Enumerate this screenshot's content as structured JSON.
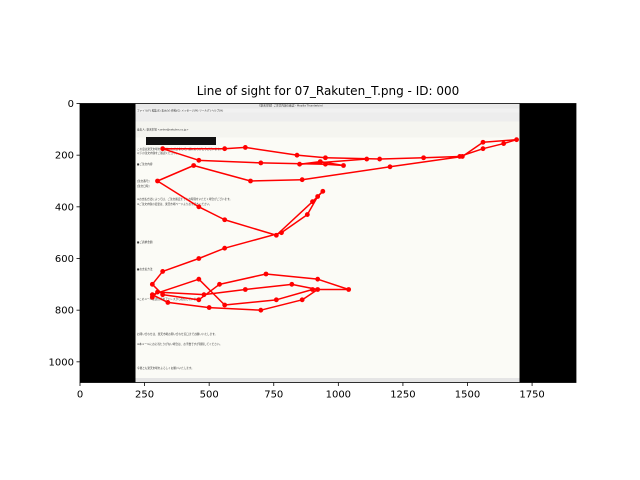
{
  "chart_data": {
    "type": "scatter",
    "title": "Line of sight for 07_Rakuten_T.png - ID: 000",
    "xlabel": "",
    "ylabel": "",
    "xlim": [
      0,
      1920
    ],
    "ylim": [
      1080,
      0
    ],
    "x_ticks": [
      0,
      250,
      500,
      750,
      1000,
      1250,
      1500,
      1750
    ],
    "y_ticks": [
      0,
      200,
      400,
      600,
      800,
      1000
    ],
    "grid": false,
    "legend": "none",
    "background_image": {
      "kind": "email client screenshot",
      "extent_x": [
        215,
        1700
      ],
      "extent_y": [
        0,
        1080
      ],
      "text_lines": [
        "【楽天市場】ご注文内容の確認 - Mozilla Thunderbird",
        "ファイル(F)  編集(E)  表示(V)  移動(G)  メッセージ(M)  ツール(T)  ヘルプ(H)",
        "差出人: 楽天市場 <order@rakuten.co.jp>",
        "この度は楽天市場をご利用いただきまして、誠にありがとうございます。",
        "以下の注文内容をご確認ください。",
        "■ご注文内容",
        "[注文番号]",
        "[注文日時]",
        "※お支払方法によっては、ご注文確定までにお時間をいただく場合がございます。",
        "※ご注文内容の変更は、楽天市場ページよりお手続きください。",
        "■ご請求金額",
        "■お支払方法",
        "※このメールは送信専用アドレスから配信しています。",
        "お問い合わせは、楽天市場お問い合わせ窓口までお願いいたします。",
        "※本メールにお心当たりがない場合は、お手数ですが削除してください。",
        "今後とも楽天市場をよろしくお願いいたします。"
      ]
    },
    "series": [
      {
        "x": [
          1110,
          850,
          930,
          1020,
          950,
          700,
          460,
          320,
          560,
          640,
          840,
          950,
          1160,
          1330,
          1470,
          1560,
          1640,
          1690,
          1560,
          1480,
          1200,
          860,
          660,
          440,
          300,
          460,
          560,
          760,
          900,
          940,
          920,
          880,
          780,
          560,
          460,
          320,
          280,
          320,
          460,
          540,
          720,
          920,
          1040,
          900,
          760,
          560,
          460,
          280,
          340,
          500,
          700,
          860,
          920,
          820,
          640,
          480,
          300,
          280
        ],
        "y": [
          215,
          235,
          225,
          240,
          235,
          230,
          220,
          175,
          175,
          170,
          200,
          210,
          215,
          210,
          205,
          175,
          155,
          140,
          150,
          205,
          245,
          295,
          300,
          240,
          300,
          400,
          450,
          510,
          380,
          340,
          360,
          430,
          500,
          560,
          600,
          650,
          700,
          740,
          760,
          700,
          660,
          680,
          720,
          720,
          760,
          780,
          680,
          740,
          770,
          790,
          800,
          760,
          720,
          700,
          720,
          740,
          730,
          750
        ]
      }
    ]
  }
}
